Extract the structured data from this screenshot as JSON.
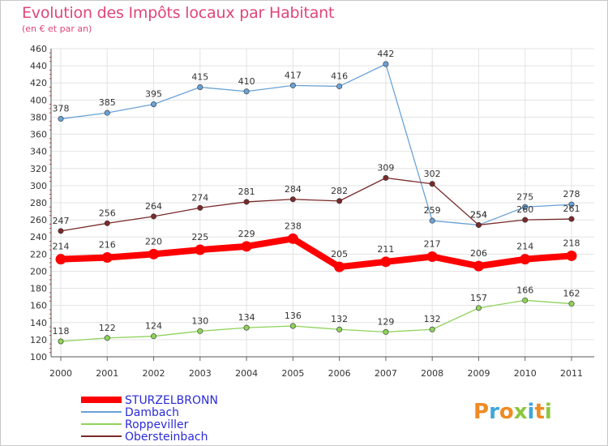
{
  "title": "Evolution des Impôts locaux par Habitant",
  "subtitle": "(en € et par an)",
  "logo": {
    "text": "Proxiti"
  },
  "chart_data": {
    "type": "line",
    "title": "Evolution des Impôts locaux par Habitant",
    "subtitle": "(en € et par an)",
    "xlabel": "",
    "ylabel": "",
    "x": [
      2000,
      2001,
      2002,
      2003,
      2004,
      2005,
      2006,
      2007,
      2008,
      2009,
      2010,
      2011
    ],
    "ylim": [
      100,
      460
    ],
    "yticks": [
      100,
      120,
      140,
      160,
      180,
      200,
      220,
      240,
      260,
      280,
      300,
      320,
      340,
      360,
      380,
      400,
      420,
      440,
      460
    ],
    "grid": true,
    "legend_position": "bottom-left",
    "series": [
      {
        "name": "STURZELBRONN",
        "color": "#ff0000",
        "highlight": true,
        "values": [
          214,
          216,
          220,
          225,
          229,
          238,
          205,
          211,
          217,
          206,
          214,
          218
        ]
      },
      {
        "name": "Dambach",
        "color": "#6aa2d6",
        "values": [
          378,
          385,
          395,
          415,
          410,
          417,
          416,
          442,
          259,
          254,
          275,
          278
        ]
      },
      {
        "name": "Roppeviller",
        "color": "#8fd35a",
        "values": [
          118,
          122,
          124,
          130,
          134,
          136,
          132,
          129,
          132,
          157,
          166,
          162
        ]
      },
      {
        "name": "Obersteinbach",
        "color": "#7a2a2a",
        "values": [
          247,
          256,
          264,
          274,
          281,
          284,
          282,
          309,
          302,
          254,
          260,
          261
        ]
      }
    ]
  }
}
